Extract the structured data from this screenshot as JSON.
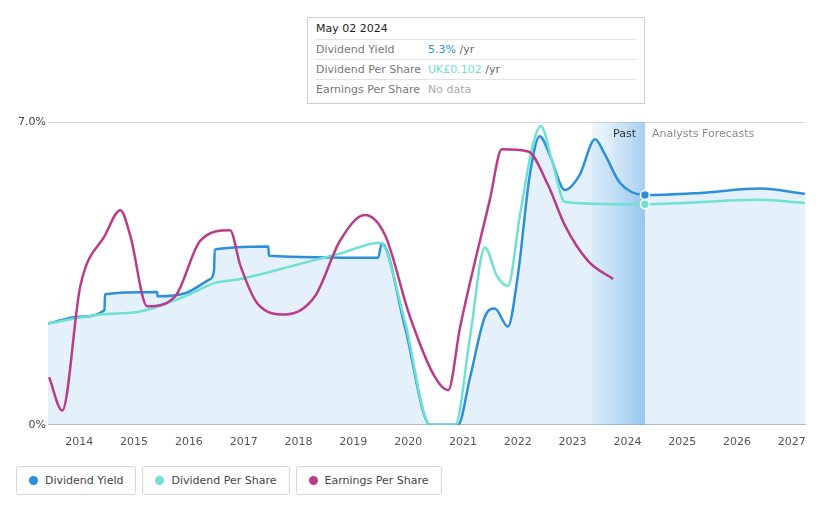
{
  "chart_data": {
    "type": "line",
    "xlim": [
      2013.43,
      2027.24
    ],
    "xticks": [
      2014,
      2015,
      2016,
      2017,
      2018,
      2019,
      2020,
      2021,
      2022,
      2023,
      2024,
      2025,
      2026,
      2027
    ],
    "ylim": [
      0,
      7
    ],
    "yticks": [
      {
        "value": 0,
        "label": "0%"
      },
      {
        "value": 7,
        "label": "7.0%"
      }
    ],
    "grid": true,
    "past_band": {
      "label": "Past",
      "x": [
        2023.35,
        2024.32
      ]
    },
    "forecast_label": "Analysts Forecasts",
    "highlight_x": 2024.32,
    "tooltip": {
      "title": "May 02 2024",
      "rows": [
        {
          "label": "Dividend Yield",
          "value": "5.3%",
          "unit": "/yr"
        },
        {
          "label": "Dividend Per Share",
          "value": "UK£0.102",
          "unit": "/yr"
        },
        {
          "label": "Earnings Per Share",
          "value": "No data"
        }
      ]
    },
    "series": [
      {
        "name": "Dividend Yield",
        "color": "#2d8fd8",
        "x": [
          2013.43,
          2014.0,
          2014.46,
          2014.47,
          2015.42,
          2015.43,
          2015.93,
          2016.39,
          2016.46,
          2016.47,
          2017.45,
          2017.46,
          2019.45,
          2019.52,
          2019.94,
          2020.4,
          2020.91,
          2021.13,
          2021.4,
          2021.58,
          2021.82,
          2022.0,
          2022.22,
          2022.4,
          2022.58,
          2022.86,
          2023.13,
          2023.41,
          2023.59,
          2023.86,
          2024.32,
          2025.32,
          2026.42,
          2027.24
        ],
        "values": [
          2.34,
          2.5,
          2.65,
          3.02,
          3.07,
          2.97,
          3.04,
          3.37,
          3.58,
          4.05,
          4.12,
          3.91,
          3.86,
          4.19,
          2.27,
          0,
          0,
          1.1,
          2.5,
          2.69,
          2.27,
          3.44,
          5.78,
          6.67,
          6.25,
          5.43,
          5.78,
          6.6,
          6.25,
          5.6,
          5.31,
          5.36,
          5.46,
          5.34
        ]
      },
      {
        "name": "Dividend Per Share",
        "color": "#6ee0d4",
        "x": [
          2013.43,
          2014.38,
          2015.11,
          2015.93,
          2016.48,
          2016.94,
          2018.03,
          2018.76,
          2019.49,
          2019.94,
          2020.4,
          2020.86,
          2021.13,
          2021.4,
          2021.62,
          2021.82,
          2022.04,
          2022.28,
          2022.42,
          2022.62,
          2022.86,
          2023.86,
          2024.32,
          2026.42,
          2027.24
        ],
        "values": [
          2.34,
          2.55,
          2.62,
          2.97,
          3.28,
          3.37,
          3.72,
          3.96,
          4.21,
          2.39,
          0,
          0,
          2.04,
          4.1,
          3.44,
          3.21,
          4.85,
          6.49,
          6.91,
          6.13,
          5.15,
          5.1,
          5.1,
          5.2,
          5.13
        ]
      },
      {
        "name": "Earnings Per Share",
        "color": "#b93c8a",
        "x": [
          2013.45,
          2013.69,
          2014.02,
          2014.47,
          2014.75,
          2014.93,
          2015.24,
          2015.75,
          2016.21,
          2016.75,
          2016.94,
          2017.26,
          2017.76,
          2018.3,
          2018.76,
          2019.21,
          2019.58,
          2020.03,
          2020.49,
          2020.73,
          2020.95,
          2021.49,
          2021.71,
          2022.19,
          2022.55,
          2022.86,
          2023.28,
          2023.74
        ],
        "values": [
          1.1,
          0.33,
          3.21,
          4.38,
          4.96,
          4.38,
          2.74,
          2.97,
          4.26,
          4.5,
          3.68,
          2.79,
          2.55,
          2.97,
          4.26,
          4.85,
          4.38,
          2.51,
          1.1,
          0.8,
          2.27,
          5.2,
          6.37,
          6.32,
          5.55,
          4.61,
          3.79,
          3.37
        ]
      }
    ]
  }
}
